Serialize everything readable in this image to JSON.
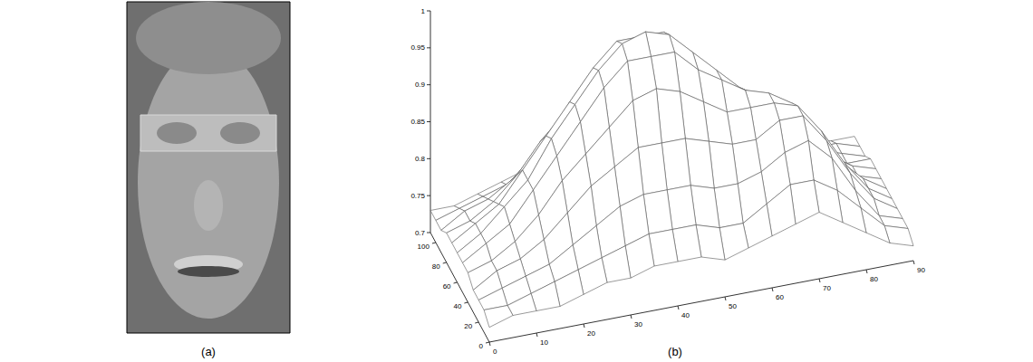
{
  "image_panel": {
    "caption": "(a)"
  },
  "chart_data": {
    "type": "surface",
    "caption": "(b)",
    "x": [
      0,
      5,
      10,
      15,
      20,
      25,
      30,
      35,
      40,
      45,
      50,
      55,
      60,
      65,
      70,
      75,
      80,
      85,
      90
    ],
    "y": [
      0,
      10,
      20,
      30,
      40,
      50,
      60,
      70,
      80,
      90,
      100,
      110
    ],
    "z": [
      [
        0.72,
        0.73,
        0.73,
        0.73,
        0.74,
        0.75,
        0.75,
        0.76,
        0.76,
        0.76,
        0.75,
        0.76,
        0.77,
        0.78,
        0.79,
        0.77,
        0.75,
        0.73,
        0.72
      ],
      [
        0.73,
        0.73,
        0.74,
        0.75,
        0.76,
        0.77,
        0.78,
        0.79,
        0.79,
        0.79,
        0.78,
        0.78,
        0.8,
        0.82,
        0.82,
        0.8,
        0.77,
        0.74,
        0.73
      ],
      [
        0.73,
        0.74,
        0.75,
        0.76,
        0.78,
        0.8,
        0.82,
        0.83,
        0.83,
        0.83,
        0.82,
        0.82,
        0.83,
        0.85,
        0.86,
        0.83,
        0.78,
        0.74,
        0.73
      ],
      [
        0.73,
        0.75,
        0.76,
        0.78,
        0.81,
        0.84,
        0.86,
        0.88,
        0.88,
        0.88,
        0.87,
        0.86,
        0.86,
        0.88,
        0.88,
        0.84,
        0.79,
        0.75,
        0.73
      ],
      [
        0.74,
        0.75,
        0.77,
        0.8,
        0.84,
        0.87,
        0.9,
        0.93,
        0.94,
        0.93,
        0.91,
        0.89,
        0.89,
        0.89,
        0.88,
        0.84,
        0.79,
        0.75,
        0.73
      ],
      [
        0.74,
        0.76,
        0.78,
        0.82,
        0.86,
        0.9,
        0.94,
        0.97,
        0.97,
        0.97,
        0.94,
        0.92,
        0.9,
        0.89,
        0.87,
        0.83,
        0.78,
        0.75,
        0.73
      ],
      [
        0.74,
        0.76,
        0.79,
        0.82,
        0.87,
        0.91,
        0.95,
        0.98,
        0.99,
        0.98,
        0.95,
        0.92,
        0.89,
        0.87,
        0.85,
        0.81,
        0.77,
        0.74,
        0.73
      ],
      [
        0.74,
        0.76,
        0.78,
        0.82,
        0.86,
        0.9,
        0.94,
        0.97,
        0.97,
        0.97,
        0.94,
        0.91,
        0.87,
        0.85,
        0.82,
        0.79,
        0.76,
        0.74,
        0.73
      ],
      [
        0.74,
        0.75,
        0.77,
        0.8,
        0.84,
        0.87,
        0.9,
        0.93,
        0.94,
        0.93,
        0.9,
        0.88,
        0.84,
        0.82,
        0.79,
        0.77,
        0.75,
        0.73,
        0.73
      ],
      [
        0.73,
        0.75,
        0.76,
        0.78,
        0.81,
        0.84,
        0.86,
        0.88,
        0.88,
        0.88,
        0.86,
        0.84,
        0.81,
        0.79,
        0.77,
        0.75,
        0.74,
        0.73,
        0.72
      ],
      [
        0.73,
        0.74,
        0.75,
        0.76,
        0.78,
        0.8,
        0.82,
        0.83,
        0.83,
        0.83,
        0.82,
        0.8,
        0.78,
        0.76,
        0.75,
        0.74,
        0.73,
        0.73,
        0.72
      ],
      [
        0.73,
        0.73,
        0.74,
        0.75,
        0.76,
        0.77,
        0.78,
        0.79,
        0.79,
        0.79,
        0.78,
        0.77,
        0.76,
        0.75,
        0.74,
        0.73,
        0.73,
        0.72,
        0.72
      ]
    ],
    "xlim": [
      0,
      90
    ],
    "ylim": [
      0,
      110
    ],
    "zlim": [
      0.7,
      1
    ],
    "xticks": [
      0,
      10,
      20,
      30,
      40,
      50,
      60,
      70,
      80,
      90
    ],
    "yticks": [
      0,
      20,
      40,
      60,
      80,
      100
    ],
    "zticks": [
      0.7,
      0.75,
      0.8,
      0.85,
      0.9,
      0.95,
      1
    ]
  }
}
